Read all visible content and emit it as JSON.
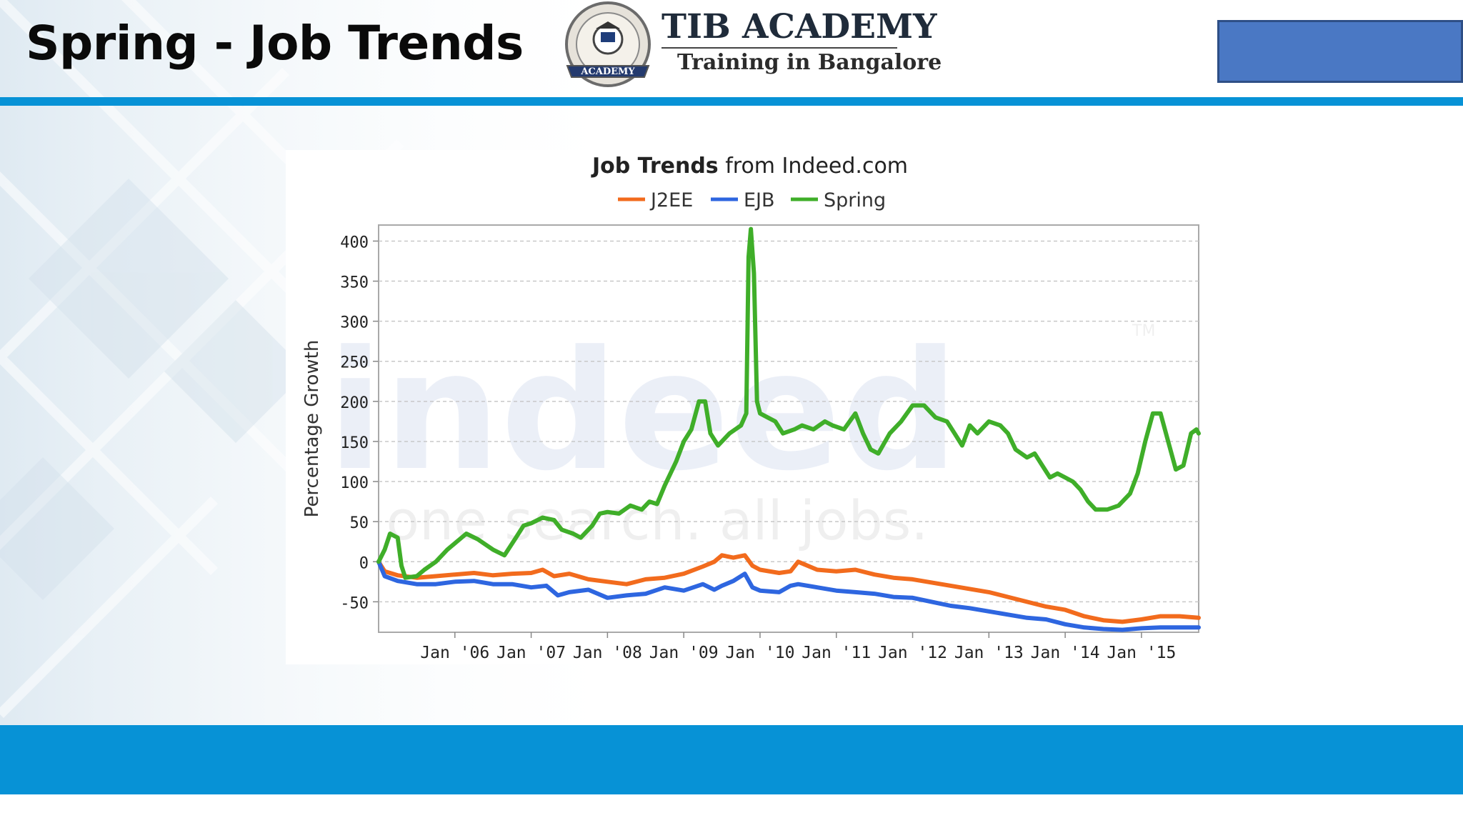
{
  "slide": {
    "title": "Spring - Job Trends"
  },
  "logo": {
    "name": "TIB ACADEMY",
    "tagline": "Training in Bangalore",
    "seal_top_text": "TRAINING IN BANGALORE",
    "seal_banner_text": "ACADEMY"
  },
  "colors": {
    "accent_blue": "#0792d6",
    "corner_box": "#4a78c4",
    "j2ee": "#f26b1d",
    "ejb": "#2e66e0",
    "spring": "#3fae29"
  },
  "chart_data": {
    "type": "line",
    "title_bold": "Job Trends",
    "title_rest": " from Indeed.com",
    "ylabel": "Percentage Growth",
    "xlabel": "",
    "ylim": [
      -88,
      420
    ],
    "xlim": [
      2005.0,
      2015.75
    ],
    "yticks": [
      400,
      350,
      300,
      250,
      200,
      150,
      100,
      50,
      0,
      -50
    ],
    "xticks": [
      {
        "label": "Jan '06",
        "value": 2006
      },
      {
        "label": "Jan '07",
        "value": 2007
      },
      {
        "label": "Jan '08",
        "value": 2008
      },
      {
        "label": "Jan '09",
        "value": 2009
      },
      {
        "label": "Jan '10",
        "value": 2010
      },
      {
        "label": "Jan '11",
        "value": 2011
      },
      {
        "label": "Jan '12",
        "value": 2012
      },
      {
        "label": "Jan '13",
        "value": 2013
      },
      {
        "label": "Jan '14",
        "value": 2014
      },
      {
        "label": "Jan '15",
        "value": 2015
      }
    ],
    "grid": true,
    "legend_position": "top-center",
    "watermark": {
      "main": "indeed",
      "tagline": "one search. all jobs.",
      "tm": "TM"
    },
    "series": [
      {
        "name": "J2EE",
        "color": "#f26b1d",
        "points": [
          [
            2005.0,
            0
          ],
          [
            2005.08,
            -12
          ],
          [
            2005.25,
            -17
          ],
          [
            2005.5,
            -20
          ],
          [
            2005.75,
            -18
          ],
          [
            2006.0,
            -16
          ],
          [
            2006.25,
            -14
          ],
          [
            2006.5,
            -17
          ],
          [
            2006.75,
            -15
          ],
          [
            2007.0,
            -14
          ],
          [
            2007.15,
            -10
          ],
          [
            2007.3,
            -18
          ],
          [
            2007.5,
            -15
          ],
          [
            2007.75,
            -22
          ],
          [
            2008.0,
            -25
          ],
          [
            2008.25,
            -28
          ],
          [
            2008.5,
            -22
          ],
          [
            2008.75,
            -20
          ],
          [
            2009.0,
            -15
          ],
          [
            2009.25,
            -6
          ],
          [
            2009.4,
            0
          ],
          [
            2009.5,
            8
          ],
          [
            2009.65,
            5
          ],
          [
            2009.8,
            8
          ],
          [
            2009.9,
            -5
          ],
          [
            2010.0,
            -10
          ],
          [
            2010.25,
            -14
          ],
          [
            2010.4,
            -12
          ],
          [
            2010.5,
            0
          ],
          [
            2010.75,
            -10
          ],
          [
            2011.0,
            -12
          ],
          [
            2011.25,
            -10
          ],
          [
            2011.5,
            -16
          ],
          [
            2011.75,
            -20
          ],
          [
            2012.0,
            -22
          ],
          [
            2012.25,
            -26
          ],
          [
            2012.5,
            -30
          ],
          [
            2012.75,
            -34
          ],
          [
            2013.0,
            -38
          ],
          [
            2013.25,
            -44
          ],
          [
            2013.5,
            -50
          ],
          [
            2013.75,
            -56
          ],
          [
            2014.0,
            -60
          ],
          [
            2014.25,
            -68
          ],
          [
            2014.5,
            -73
          ],
          [
            2014.75,
            -75
          ],
          [
            2015.0,
            -72
          ],
          [
            2015.25,
            -68
          ],
          [
            2015.5,
            -68
          ],
          [
            2015.75,
            -70
          ]
        ]
      },
      {
        "name": "EJB",
        "color": "#2e66e0",
        "points": [
          [
            2005.0,
            0
          ],
          [
            2005.08,
            -18
          ],
          [
            2005.25,
            -24
          ],
          [
            2005.5,
            -28
          ],
          [
            2005.75,
            -28
          ],
          [
            2006.0,
            -25
          ],
          [
            2006.25,
            -24
          ],
          [
            2006.5,
            -28
          ],
          [
            2006.75,
            -28
          ],
          [
            2007.0,
            -32
          ],
          [
            2007.2,
            -30
          ],
          [
            2007.35,
            -42
          ],
          [
            2007.5,
            -38
          ],
          [
            2007.75,
            -35
          ],
          [
            2008.0,
            -45
          ],
          [
            2008.25,
            -42
          ],
          [
            2008.5,
            -40
          ],
          [
            2008.75,
            -32
          ],
          [
            2009.0,
            -36
          ],
          [
            2009.25,
            -28
          ],
          [
            2009.4,
            -35
          ],
          [
            2009.5,
            -30
          ],
          [
            2009.65,
            -24
          ],
          [
            2009.8,
            -15
          ],
          [
            2009.9,
            -32
          ],
          [
            2010.0,
            -36
          ],
          [
            2010.25,
            -38
          ],
          [
            2010.4,
            -30
          ],
          [
            2010.5,
            -28
          ],
          [
            2010.75,
            -32
          ],
          [
            2011.0,
            -36
          ],
          [
            2011.25,
            -38
          ],
          [
            2011.5,
            -40
          ],
          [
            2011.75,
            -44
          ],
          [
            2012.0,
            -45
          ],
          [
            2012.25,
            -50
          ],
          [
            2012.5,
            -55
          ],
          [
            2012.75,
            -58
          ],
          [
            2013.0,
            -62
          ],
          [
            2013.25,
            -66
          ],
          [
            2013.5,
            -70
          ],
          [
            2013.75,
            -72
          ],
          [
            2014.0,
            -78
          ],
          [
            2014.25,
            -82
          ],
          [
            2014.5,
            -84
          ],
          [
            2014.75,
            -85
          ],
          [
            2015.0,
            -83
          ],
          [
            2015.25,
            -82
          ],
          [
            2015.5,
            -82
          ],
          [
            2015.75,
            -82
          ]
        ]
      },
      {
        "name": "Spring",
        "color": "#3fae29",
        "points": [
          [
            2005.0,
            0
          ],
          [
            2005.08,
            15
          ],
          [
            2005.15,
            35
          ],
          [
            2005.25,
            30
          ],
          [
            2005.3,
            -5
          ],
          [
            2005.35,
            -20
          ],
          [
            2005.5,
            -18
          ],
          [
            2005.6,
            -10
          ],
          [
            2005.75,
            0
          ],
          [
            2005.9,
            15
          ],
          [
            2006.05,
            27
          ],
          [
            2006.15,
            35
          ],
          [
            2006.3,
            28
          ],
          [
            2006.5,
            15
          ],
          [
            2006.65,
            8
          ],
          [
            2006.8,
            30
          ],
          [
            2006.9,
            45
          ],
          [
            2007.0,
            48
          ],
          [
            2007.15,
            55
          ],
          [
            2007.3,
            52
          ],
          [
            2007.4,
            40
          ],
          [
            2007.55,
            35
          ],
          [
            2007.65,
            30
          ],
          [
            2007.8,
            45
          ],
          [
            2007.9,
            60
          ],
          [
            2008.0,
            62
          ],
          [
            2008.15,
            60
          ],
          [
            2008.3,
            70
          ],
          [
            2008.45,
            65
          ],
          [
            2008.55,
            75
          ],
          [
            2008.65,
            72
          ],
          [
            2008.75,
            95
          ],
          [
            2008.9,
            125
          ],
          [
            2009.0,
            150
          ],
          [
            2009.1,
            165
          ],
          [
            2009.2,
            200
          ],
          [
            2009.28,
            200
          ],
          [
            2009.35,
            160
          ],
          [
            2009.45,
            145
          ],
          [
            2009.6,
            160
          ],
          [
            2009.75,
            170
          ],
          [
            2009.82,
            185
          ],
          [
            2009.85,
            380
          ],
          [
            2009.88,
            415
          ],
          [
            2009.92,
            360
          ],
          [
            2009.96,
            200
          ],
          [
            2010.0,
            185
          ],
          [
            2010.1,
            180
          ],
          [
            2010.2,
            175
          ],
          [
            2010.3,
            160
          ],
          [
            2010.45,
            165
          ],
          [
            2010.55,
            170
          ],
          [
            2010.7,
            165
          ],
          [
            2010.85,
            175
          ],
          [
            2010.95,
            170
          ],
          [
            2011.1,
            165
          ],
          [
            2011.25,
            185
          ],
          [
            2011.35,
            160
          ],
          [
            2011.45,
            140
          ],
          [
            2011.55,
            135
          ],
          [
            2011.7,
            160
          ],
          [
            2011.85,
            175
          ],
          [
            2012.0,
            195
          ],
          [
            2012.15,
            195
          ],
          [
            2012.3,
            180
          ],
          [
            2012.45,
            175
          ],
          [
            2012.55,
            160
          ],
          [
            2012.65,
            145
          ],
          [
            2012.75,
            170
          ],
          [
            2012.85,
            160
          ],
          [
            2013.0,
            175
          ],
          [
            2013.15,
            170
          ],
          [
            2013.25,
            160
          ],
          [
            2013.35,
            140
          ],
          [
            2013.5,
            130
          ],
          [
            2013.6,
            135
          ],
          [
            2013.7,
            120
          ],
          [
            2013.8,
            105
          ],
          [
            2013.9,
            110
          ],
          [
            2014.0,
            105
          ],
          [
            2014.1,
            100
          ],
          [
            2014.2,
            90
          ],
          [
            2014.3,
            75
          ],
          [
            2014.4,
            65
          ],
          [
            2014.55,
            65
          ],
          [
            2014.7,
            70
          ],
          [
            2014.85,
            85
          ],
          [
            2014.95,
            110
          ],
          [
            2015.05,
            150
          ],
          [
            2015.15,
            185
          ],
          [
            2015.25,
            185
          ],
          [
            2015.35,
            150
          ],
          [
            2015.45,
            115
          ],
          [
            2015.55,
            120
          ],
          [
            2015.65,
            160
          ],
          [
            2015.72,
            165
          ],
          [
            2015.75,
            160
          ]
        ]
      }
    ]
  }
}
